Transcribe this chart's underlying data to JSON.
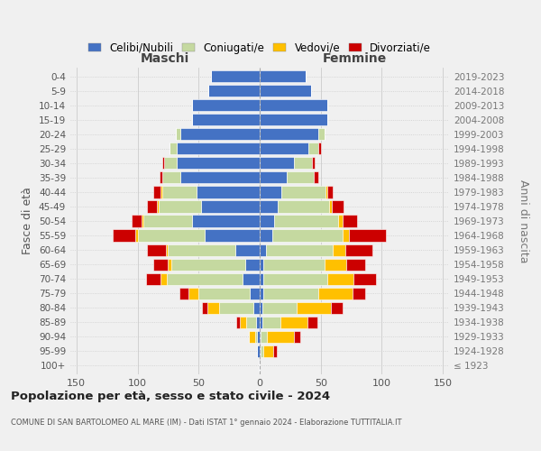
{
  "age_groups": [
    "100+",
    "95-99",
    "90-94",
    "85-89",
    "80-84",
    "75-79",
    "70-74",
    "65-69",
    "60-64",
    "55-59",
    "50-54",
    "45-49",
    "40-44",
    "35-39",
    "30-34",
    "25-29",
    "20-24",
    "15-19",
    "10-14",
    "5-9",
    "0-4"
  ],
  "birth_years": [
    "≤ 1923",
    "1924-1928",
    "1929-1933",
    "1934-1938",
    "1939-1943",
    "1944-1948",
    "1949-1953",
    "1954-1958",
    "1959-1963",
    "1964-1968",
    "1969-1973",
    "1974-1978",
    "1979-1983",
    "1984-1988",
    "1989-1993",
    "1994-1998",
    "1999-2003",
    "2004-2008",
    "2009-2013",
    "2014-2018",
    "2019-2023"
  ],
  "colors": {
    "celibe": "#4472c4",
    "coniugato": "#c5d9a0",
    "vedovo": "#ffc000",
    "divorziato": "#cc0000"
  },
  "maschi": {
    "celibe": [
      1,
      2,
      2,
      3,
      5,
      8,
      14,
      12,
      20,
      45,
      55,
      48,
      52,
      65,
      68,
      68,
      65,
      55,
      55,
      42,
      40
    ],
    "coniugato": [
      0,
      0,
      2,
      8,
      28,
      42,
      62,
      60,
      55,
      55,
      40,
      35,
      28,
      15,
      10,
      6,
      4,
      0,
      0,
      0,
      0
    ],
    "vedovo": [
      0,
      0,
      5,
      5,
      10,
      8,
      5,
      3,
      2,
      2,
      2,
      1,
      1,
      0,
      0,
      0,
      0,
      0,
      0,
      0,
      0
    ],
    "divorziato": [
      0,
      0,
      0,
      3,
      4,
      8,
      12,
      12,
      15,
      18,
      8,
      8,
      6,
      2,
      2,
      0,
      0,
      0,
      0,
      0,
      0
    ]
  },
  "femmine": {
    "celibe": [
      0,
      1,
      1,
      2,
      2,
      3,
      3,
      3,
      5,
      10,
      12,
      15,
      18,
      22,
      28,
      40,
      48,
      55,
      55,
      42,
      38
    ],
    "coniugato": [
      0,
      2,
      5,
      15,
      28,
      45,
      52,
      50,
      55,
      58,
      52,
      42,
      36,
      22,
      15,
      8,
      5,
      0,
      0,
      0,
      0
    ],
    "vedovo": [
      0,
      8,
      22,
      22,
      28,
      28,
      22,
      18,
      10,
      5,
      4,
      2,
      1,
      0,
      0,
      0,
      0,
      0,
      0,
      0,
      0
    ],
    "divorziato": [
      0,
      3,
      5,
      8,
      10,
      10,
      18,
      15,
      22,
      30,
      12,
      10,
      5,
      4,
      2,
      2,
      0,
      0,
      0,
      0,
      0
    ]
  },
  "xlim": 155,
  "title": "Popolazione per età, sesso e stato civile - 2024",
  "subtitle": "COMUNE DI SAN BARTOLOMEO AL MARE (IM) - Dati ISTAT 1° gennaio 2024 - Elaborazione TUTTITALIA.IT",
  "xlabel_left": "Maschi",
  "xlabel_right": "Femmine",
  "ylabel_left": "Fasce di età",
  "ylabel_right": "Anni di nascita",
  "legend_labels": [
    "Celibi/Nubili",
    "Coniugati/e",
    "Vedovi/e",
    "Divorziati/e"
  ],
  "bg_color": "#f0f0f0",
  "grid_color": "#cccccc"
}
